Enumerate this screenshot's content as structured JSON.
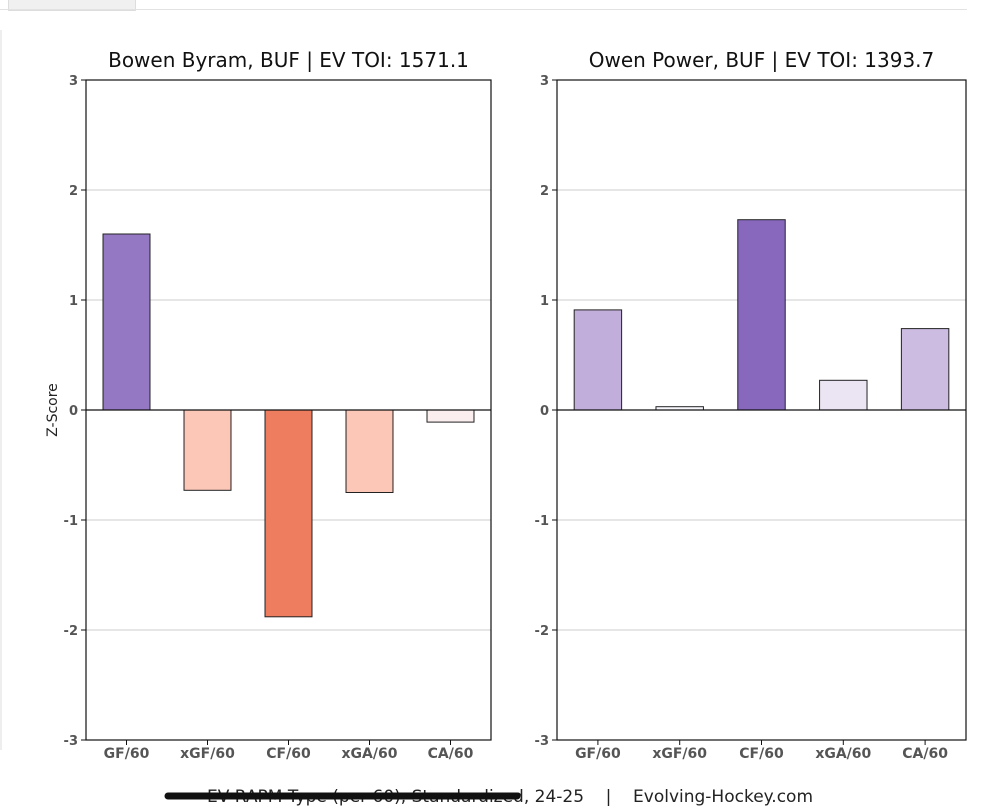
{
  "chart_data": [
    {
      "type": "bar",
      "title": "Bowen Byram, BUF  |  EV TOI: 1571.1",
      "ylabel": "Z-Score",
      "ylim": [
        -3,
        3
      ],
      "yticks": [
        "3",
        "2",
        "1",
        "0",
        "-1",
        "-2",
        "-3"
      ],
      "grid": true,
      "categories": [
        "GF/60",
        "xGF/60",
        "CF/60",
        "xGA/60",
        "CA/60"
      ],
      "values": [
        1.6,
        -0.73,
        -1.88,
        -0.75,
        -0.11
      ],
      "colors": [
        "#9478c4",
        "#fdc7b8",
        "#ee7c5f",
        "#fdc7b8",
        "#fbeeee"
      ]
    },
    {
      "type": "bar",
      "title": "Owen Power, BUF  |  EV TOI: 1393.7",
      "ylabel": "",
      "ylim": [
        -3,
        3
      ],
      "yticks": [
        "3",
        "2",
        "1",
        "0",
        "-1",
        "-2",
        "-3"
      ],
      "grid": true,
      "categories": [
        "GF/60",
        "xGF/60",
        "CF/60",
        "xGA/60",
        "CA/60"
      ],
      "values": [
        0.91,
        0.03,
        1.73,
        0.27,
        0.74
      ],
      "colors": [
        "#c2aedb",
        "#f9f7fc",
        "#8768bd",
        "#ebe4f3",
        "#ccbce1"
      ]
    }
  ],
  "footer": {
    "text": "EV RAPM Type (per 60), Standardized, 24-25    |    Evolving-Hockey.com"
  }
}
